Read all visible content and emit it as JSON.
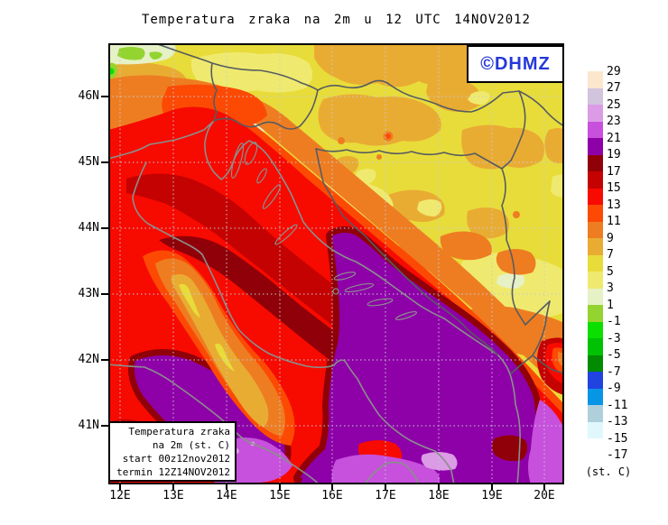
{
  "title": "Temperatura zraka na 2m u 12 UTC 14NOV2012",
  "watermark": {
    "text": "©DHMZ",
    "color": "#2438D8"
  },
  "info_box": {
    "line1": "Temperatura zraka",
    "line2": "na 2m (st. C)",
    "line3": "start 00z12nov2012",
    "line4": "termin 12Z14NOV2012"
  },
  "axes": {
    "lat": [
      "46N",
      "45N",
      "44N",
      "43N",
      "42N",
      "41N"
    ],
    "lon": [
      "12E",
      "13E",
      "14E",
      "15E",
      "16E",
      "17E",
      "18E",
      "19E",
      "20E"
    ]
  },
  "colorbar": {
    "unit": "(st. C)",
    "labels": [
      "29",
      "27",
      "25",
      "23",
      "21",
      "19",
      "17",
      "15",
      "13",
      "11",
      "9",
      "7",
      "5",
      "3",
      "1",
      "-1",
      "-3",
      "-5",
      "-7",
      "-9",
      "-11",
      "-13",
      "-15",
      "-17"
    ],
    "colors": [
      "#FBE7CE",
      "#D1C4DD",
      "#DB9BE5",
      "#C750DC",
      "#8E00A8",
      "#900008",
      "#C40202",
      "#F70A00",
      "#FC4A04",
      "#EE7D22",
      "#E9AC33",
      "#E8DC3A",
      "#EFEA6F",
      "#E6F1C6",
      "#93D430",
      "#0ADF00",
      "#00C203",
      "#028A00",
      "#2143E0",
      "#0795E5",
      "#AFD0DB",
      "#E0F7FC",
      "#FFFFFF"
    ]
  },
  "map_colors": {
    "yellow_5_7": "#E8DC3A",
    "mustard_7_9": "#E9AC33",
    "orange_9_11": "#EE7D22",
    "orangered_11_13": "#FC4A04",
    "red_13_15": "#F70A00",
    "medred_15_17": "#C40202",
    "maroon_17_19": "#900008",
    "purple_19_21": "#8E00A8",
    "orchid_21_23": "#C750DC",
    "coastline": "#8A8F8C",
    "border": "#565C60",
    "grid": "#C2CCD6"
  }
}
